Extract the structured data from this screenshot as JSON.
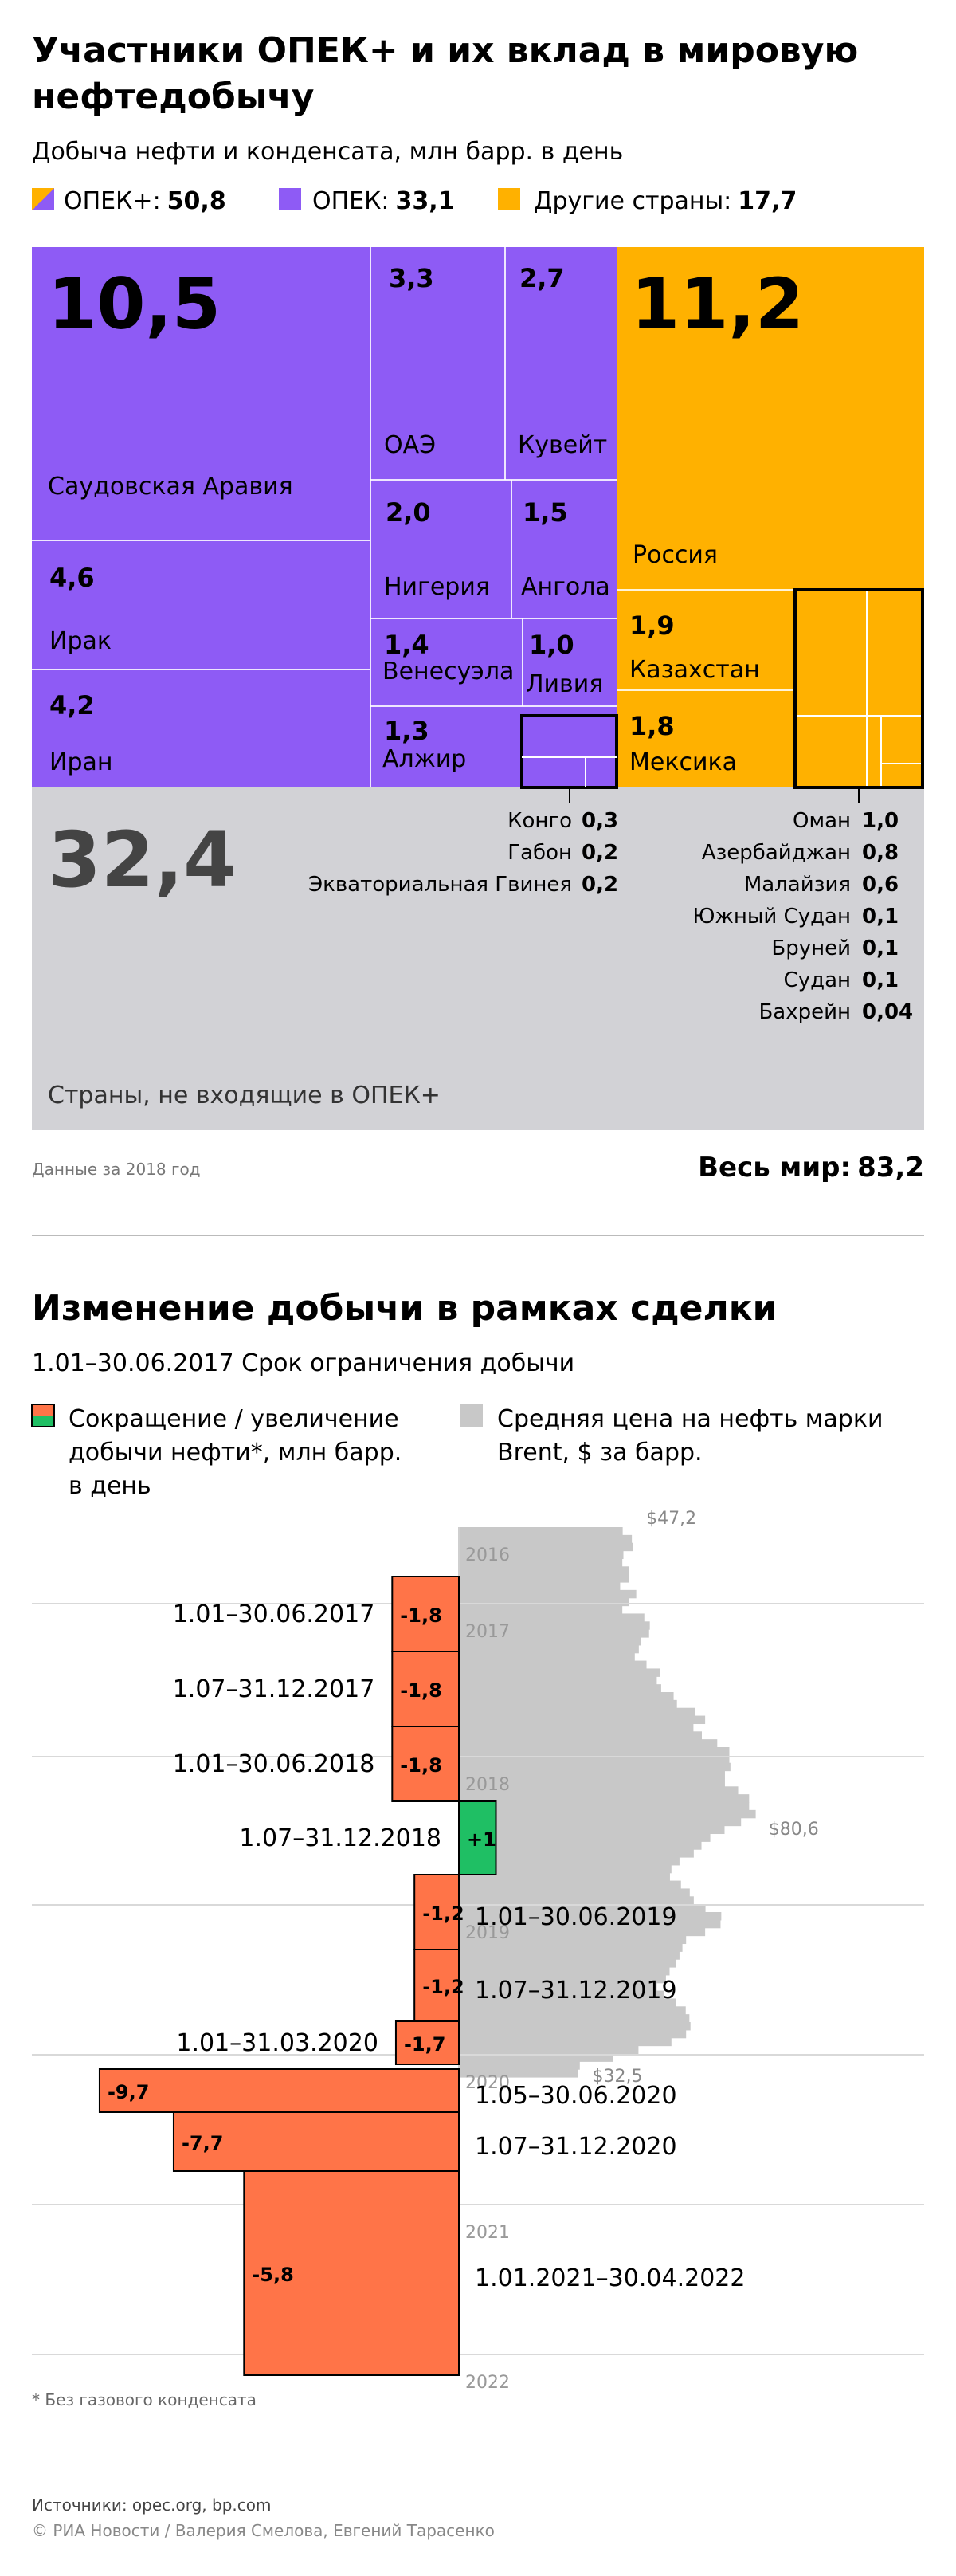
{
  "title": "Участники ОПЕК+ и их вклад в мировую нефтедобычу",
  "title_lines": [
    "Участники ОПЕК+ и их вклад в мировую",
    "нефтедобычу"
  ],
  "subtitle": "Добыча нефти и конденсата, млн барр. в день",
  "legend": {
    "opec_plus": {
      "label": "ОПЕК+:",
      "value": "50,8"
    },
    "opec": {
      "label": "ОПЕК:",
      "value": "33,1"
    },
    "other": {
      "label": "Другие страны:",
      "value": "17,7"
    }
  },
  "colors": {
    "opec": "#8e5bf5",
    "other": "#ffb100",
    "non_opec": "#d2d2d6",
    "cut": "#ff7448",
    "increase": "#1fbf64",
    "price": "#c8c8c8"
  },
  "chart_data": [
    {
      "type": "treemap",
      "unit": "млн барр. в день",
      "groups": [
        {
          "name": "ОПЕК",
          "total": 33.1,
          "items": [
            {
              "name": "Саудовская Аравия",
              "value": 10.5,
              "label": "10,5"
            },
            {
              "name": "Ирак",
              "value": 4.6,
              "label": "4,6"
            },
            {
              "name": "Иран",
              "value": 4.2,
              "label": "4,2"
            },
            {
              "name": "ОАЭ",
              "value": 3.3,
              "label": "3,3"
            },
            {
              "name": "Кувейт",
              "value": 2.7,
              "label": "2,7"
            },
            {
              "name": "Нигерия",
              "value": 2.0,
              "label": "2,0"
            },
            {
              "name": "Ангола",
              "value": 1.5,
              "label": "1,5"
            },
            {
              "name": "Венесуэла",
              "value": 1.4,
              "label": "1,4"
            },
            {
              "name": "Ливия",
              "value": 1.0,
              "label": "1,0"
            },
            {
              "name": "Алжир",
              "value": 1.3,
              "label": "1,3"
            },
            {
              "name": "Конго",
              "value": 0.3,
              "label": "0,3"
            },
            {
              "name": "Габон",
              "value": 0.2,
              "label": "0,2"
            },
            {
              "name": "Экваториальная Гвинея",
              "value": 0.2,
              "label": "0,2"
            }
          ]
        },
        {
          "name": "Другие страны",
          "total": 17.7,
          "items": [
            {
              "name": "Россия",
              "value": 11.2,
              "label": "11,2"
            },
            {
              "name": "Казахстан",
              "value": 1.9,
              "label": "1,9"
            },
            {
              "name": "Мексика",
              "value": 1.8,
              "label": "1,8"
            },
            {
              "name": "Оман",
              "value": 1.0,
              "label": "1,0"
            },
            {
              "name": "Азербайджан",
              "value": 0.8,
              "label": "0,8"
            },
            {
              "name": "Малайзия",
              "value": 0.6,
              "label": "0,6"
            },
            {
              "name": "Южный Судан",
              "value": 0.1,
              "label": "0,1"
            },
            {
              "name": "Бруней",
              "value": 0.1,
              "label": "0,1"
            },
            {
              "name": "Судан",
              "value": 0.1,
              "label": "0,1"
            },
            {
              "name": "Бахрейн",
              "value": 0.04,
              "label": "0,04"
            }
          ]
        },
        {
          "name": "Страны, не входящие в ОПЕК+",
          "total": 32.4,
          "items": [
            {
              "name": "Страны, не входящие в ОПЕК+",
              "value": 32.4,
              "label": "32,4"
            }
          ]
        }
      ],
      "world_total": {
        "label": "Весь мир:",
        "value": "83,2"
      },
      "note": "Данные за 2018 год"
    },
    {
      "type": "bar",
      "title": "Изменение добычи в рамках сделки",
      "subtitle": "1.01–30.06.2017 Срок ограничения добычи",
      "legend_bars": "Сокращение / увеличение добычи нефти*, млн барр. в день",
      "legend_bars_lines": [
        "Сокращение / увеличение",
        "добычи нефти*, млн барр.",
        "в день"
      ],
      "legend_price": "Средняя цена на нефть марки Brent, $ за барр.",
      "legend_price_lines": [
        "Средняя цена на нефть марки",
        "Brent, $ за барр."
      ],
      "periods": [
        {
          "label": "1.01–30.06.2017",
          "value": -1.8,
          "value_label": "-1,8"
        },
        {
          "label": "1.07–31.12.2017",
          "value": -1.8,
          "value_label": "-1,8"
        },
        {
          "label": "1.01–30.06.2018",
          "value": -1.8,
          "value_label": "-1,8"
        },
        {
          "label": "1.07–31.12.2018",
          "value": 1.0,
          "value_label": "+1"
        },
        {
          "label": "1.01–30.06.2019",
          "value": -1.2,
          "value_label": "-1,2"
        },
        {
          "label": "1.07–31.12.2019",
          "value": -1.2,
          "value_label": "-1,2"
        },
        {
          "label": "1.01–31.03.2020",
          "value": -1.7,
          "value_label": "-1,7"
        },
        {
          "label": "1.05–30.06.2020",
          "value": -9.7,
          "value_label": "-9,7"
        },
        {
          "label": "1.07–31.12.2020",
          "value": -7.7,
          "value_label": "-7,7"
        },
        {
          "label": "1.01.2021–30.04.2022",
          "value": -5.8,
          "value_label": "-5,8"
        }
      ],
      "years": [
        "2016",
        "2017",
        "2018",
        "2019",
        "2020",
        "2021",
        "2022"
      ],
      "price_annotations": [
        {
          "label": "$47,2",
          "value": 47.2
        },
        {
          "label": "$80,6",
          "value": 80.6
        },
        {
          "label": "$32,5",
          "value": 32.5
        }
      ],
      "price_series": [
        44.7,
        47.2,
        47.5,
        44.9,
        44.6,
        46.5,
        46.3,
        44.0,
        48.4,
        46.3,
        44.6,
        50.6,
        52.1,
        51.9,
        49.7,
        49.1,
        48.0,
        51.2,
        54.9,
        54.0,
        55.2,
        58.6,
        59.5,
        64.5,
        67.2,
        64.0,
        66.3,
        70.5,
        73.8,
        73.8,
        74.1,
        72.6,
        72.6,
        76.2,
        79.2,
        79.2,
        81.0,
        77.0,
        72.5,
        68.6,
        66.2,
        64.1,
        60.2,
        58.0,
        57.6,
        60.6,
        63.0,
        64.1,
        67.3,
        71.6,
        71.4,
        67.2,
        62.0,
        61.0,
        60.2,
        59.3,
        57.5,
        56.5,
        54.0,
        55.9,
        59.3,
        61.9,
        62.9,
        63.2,
        62.0,
        58.0,
        49.0,
        42.0,
        33.0,
        32.5
      ]
    }
  ],
  "footnote": "* Без газового конденсата",
  "sources": "Источники: opec.org, bp.com",
  "copyright": "© РИА Новости / Валерия Смелова, Евгений Тарасенко"
}
